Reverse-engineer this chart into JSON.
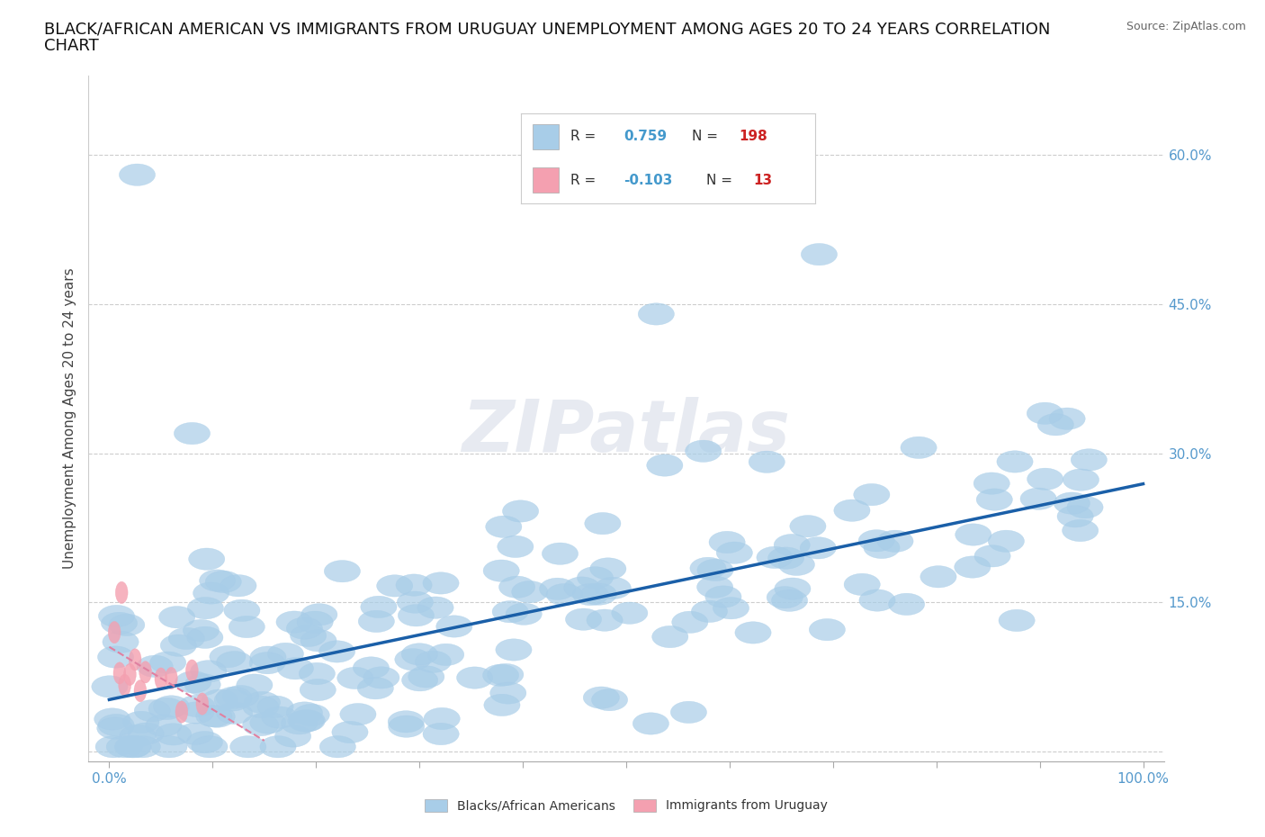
{
  "title_line1": "BLACK/AFRICAN AMERICAN VS IMMIGRANTS FROM URUGUAY UNEMPLOYMENT AMONG AGES 20 TO 24 YEARS CORRELATION",
  "title_line2": "CHART",
  "ylabel": "Unemployment Among Ages 20 to 24 years",
  "source_text": "Source: ZipAtlas.com",
  "watermark": "ZIPatlas",
  "xlim": [
    -2.0,
    102.0
  ],
  "ylim": [
    -0.01,
    0.68
  ],
  "yticks": [
    0.0,
    0.15,
    0.3,
    0.45,
    0.6
  ],
  "ytick_labels": [
    "",
    "15.0%",
    "30.0%",
    "45.0%",
    "60.0%"
  ],
  "blue_R": 0.759,
  "blue_N": 198,
  "pink_R": -0.103,
  "pink_N": 13,
  "blue_color": "#A8CDE8",
  "pink_color": "#F4A0B0",
  "blue_line_color": "#1A5FA8",
  "pink_line_color": "#E080A0",
  "legend_label_blue": "Blacks/African Americans",
  "legend_label_pink": "Immigrants from Uruguay",
  "title_fontsize": 13,
  "axis_label_fontsize": 11,
  "tick_fontsize": 11,
  "blue_seed": 12,
  "pink_seed": 55,
  "blue_trend_x0": 0,
  "blue_trend_y0": 0.04,
  "blue_trend_x1": 100,
  "blue_trend_y1": 0.275,
  "pink_trend_x0": 0,
  "pink_trend_y0": 0.1,
  "pink_trend_x1": 15,
  "pink_trend_y1": 0.055
}
